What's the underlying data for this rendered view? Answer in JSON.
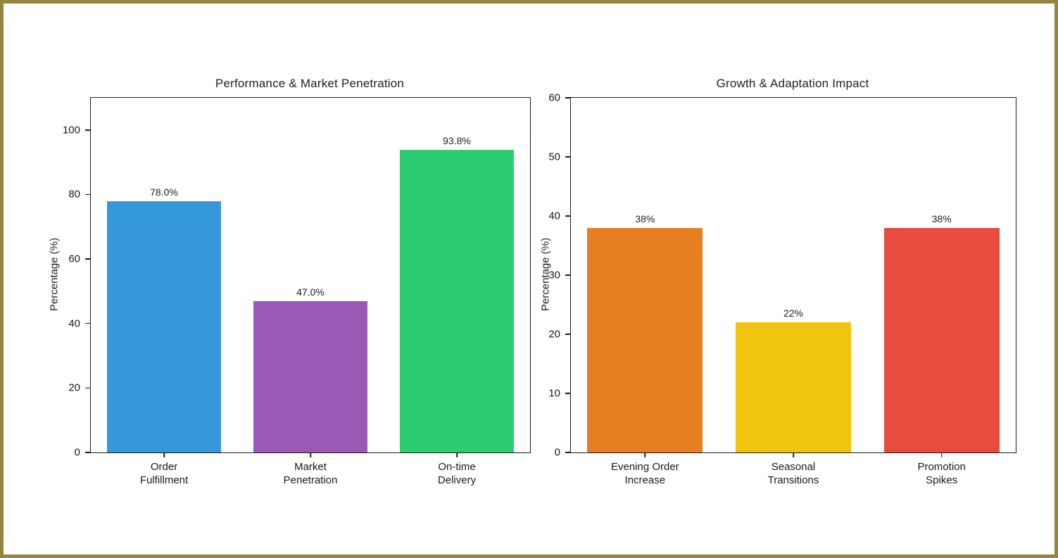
{
  "page": {
    "background_color": "#ffffff",
    "frame_border_color": "#958540",
    "axis_color": "#1a1a1a",
    "text_color": "#212121"
  },
  "chart_data": [
    {
      "type": "bar",
      "title": "Performance & Market Penetration",
      "xlabel": "",
      "ylabel": "Percentage (%)",
      "categories": [
        "Order\nFulfillment",
        "Market\nPenetration",
        "On-time\nDelivery"
      ],
      "values": [
        78.0,
        47.0,
        93.8
      ],
      "value_labels": [
        "78.0%",
        "47.0%",
        "93.8%"
      ],
      "bar_colors": [
        "#3498db",
        "#9b59b6",
        "#2ecc71"
      ],
      "ylim": [
        0,
        110
      ],
      "yticks": [
        0,
        20,
        40,
        60,
        80,
        100
      ],
      "grid": false,
      "legend": null,
      "bar_width_fraction": 0.78
    },
    {
      "type": "bar",
      "title": "Growth & Adaptation Impact",
      "xlabel": "",
      "ylabel": "Percentage (%)",
      "categories": [
        "Evening Order\nIncrease",
        "Seasonal\nTransitions",
        "Promotion\nSpikes"
      ],
      "values": [
        38,
        22,
        38
      ],
      "value_labels": [
        "38%",
        "22%",
        "38%"
      ],
      "bar_colors": [
        "#e67e22",
        "#f1c40f",
        "#e74c3c"
      ],
      "ylim": [
        0,
        60
      ],
      "yticks": [
        0,
        10,
        20,
        30,
        40,
        50,
        60
      ],
      "grid": false,
      "legend": null,
      "bar_width_fraction": 0.78
    }
  ]
}
